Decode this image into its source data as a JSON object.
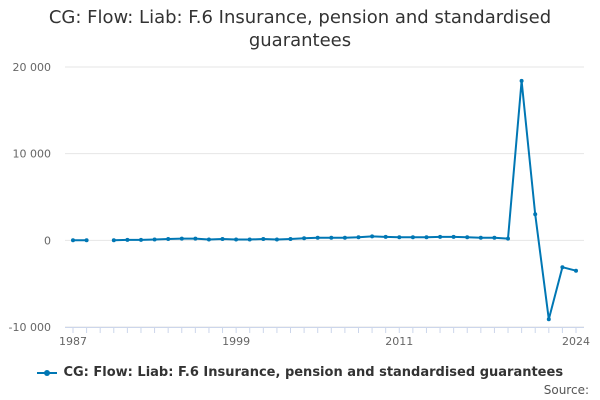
{
  "chart_data": {
    "type": "line",
    "title": "CG: Flow: Liab: F.6 Insurance, pension and standardised guarantees",
    "xlabel": "",
    "ylabel": "",
    "xlim": [
      1987,
      2024
    ],
    "ylim": [
      -10000,
      20000
    ],
    "y_ticks": [
      -10000,
      0,
      10000,
      20000
    ],
    "y_tick_labels": [
      "-10 000",
      "0",
      "10 000",
      "20 000"
    ],
    "x_ticks": [
      1987,
      1999,
      2011,
      2024
    ],
    "x_tick_labels": [
      "1987",
      "1999",
      "2011",
      "2024"
    ],
    "legend_position": "bottom",
    "series": [
      {
        "name": "CG: Flow: Liab: F.6 Insurance, pension and standardised guarantees",
        "color": "#0077b4",
        "points": [
          [
            1987,
            0
          ],
          [
            1988,
            0
          ],
          [
            1989,
            null
          ],
          [
            1990,
            0
          ],
          [
            1991,
            50
          ],
          [
            1992,
            50
          ],
          [
            1993,
            100
          ],
          [
            1994,
            150
          ],
          [
            1995,
            200
          ],
          [
            1996,
            200
          ],
          [
            1997,
            100
          ],
          [
            1998,
            150
          ],
          [
            1999,
            100
          ],
          [
            2000,
            100
          ],
          [
            2001,
            150
          ],
          [
            2002,
            100
          ],
          [
            2003,
            150
          ],
          [
            2004,
            250
          ],
          [
            2005,
            300
          ],
          [
            2006,
            300
          ],
          [
            2007,
            300
          ],
          [
            2008,
            350
          ],
          [
            2009,
            450
          ],
          [
            2010,
            400
          ],
          [
            2011,
            350
          ],
          [
            2012,
            350
          ],
          [
            2013,
            350
          ],
          [
            2014,
            400
          ],
          [
            2015,
            400
          ],
          [
            2016,
            350
          ],
          [
            2017,
            300
          ],
          [
            2018,
            300
          ],
          [
            2019,
            200
          ],
          [
            2020,
            18400
          ],
          [
            2021,
            3000
          ],
          [
            2022,
            -9100
          ],
          [
            2023,
            -3100
          ],
          [
            2024,
            -3500
          ]
        ]
      }
    ]
  },
  "legend": {
    "label": "CG: Flow: Liab: F.6 Insurance, pension and standardised guarantees"
  },
  "source": {
    "label": "Source:"
  }
}
